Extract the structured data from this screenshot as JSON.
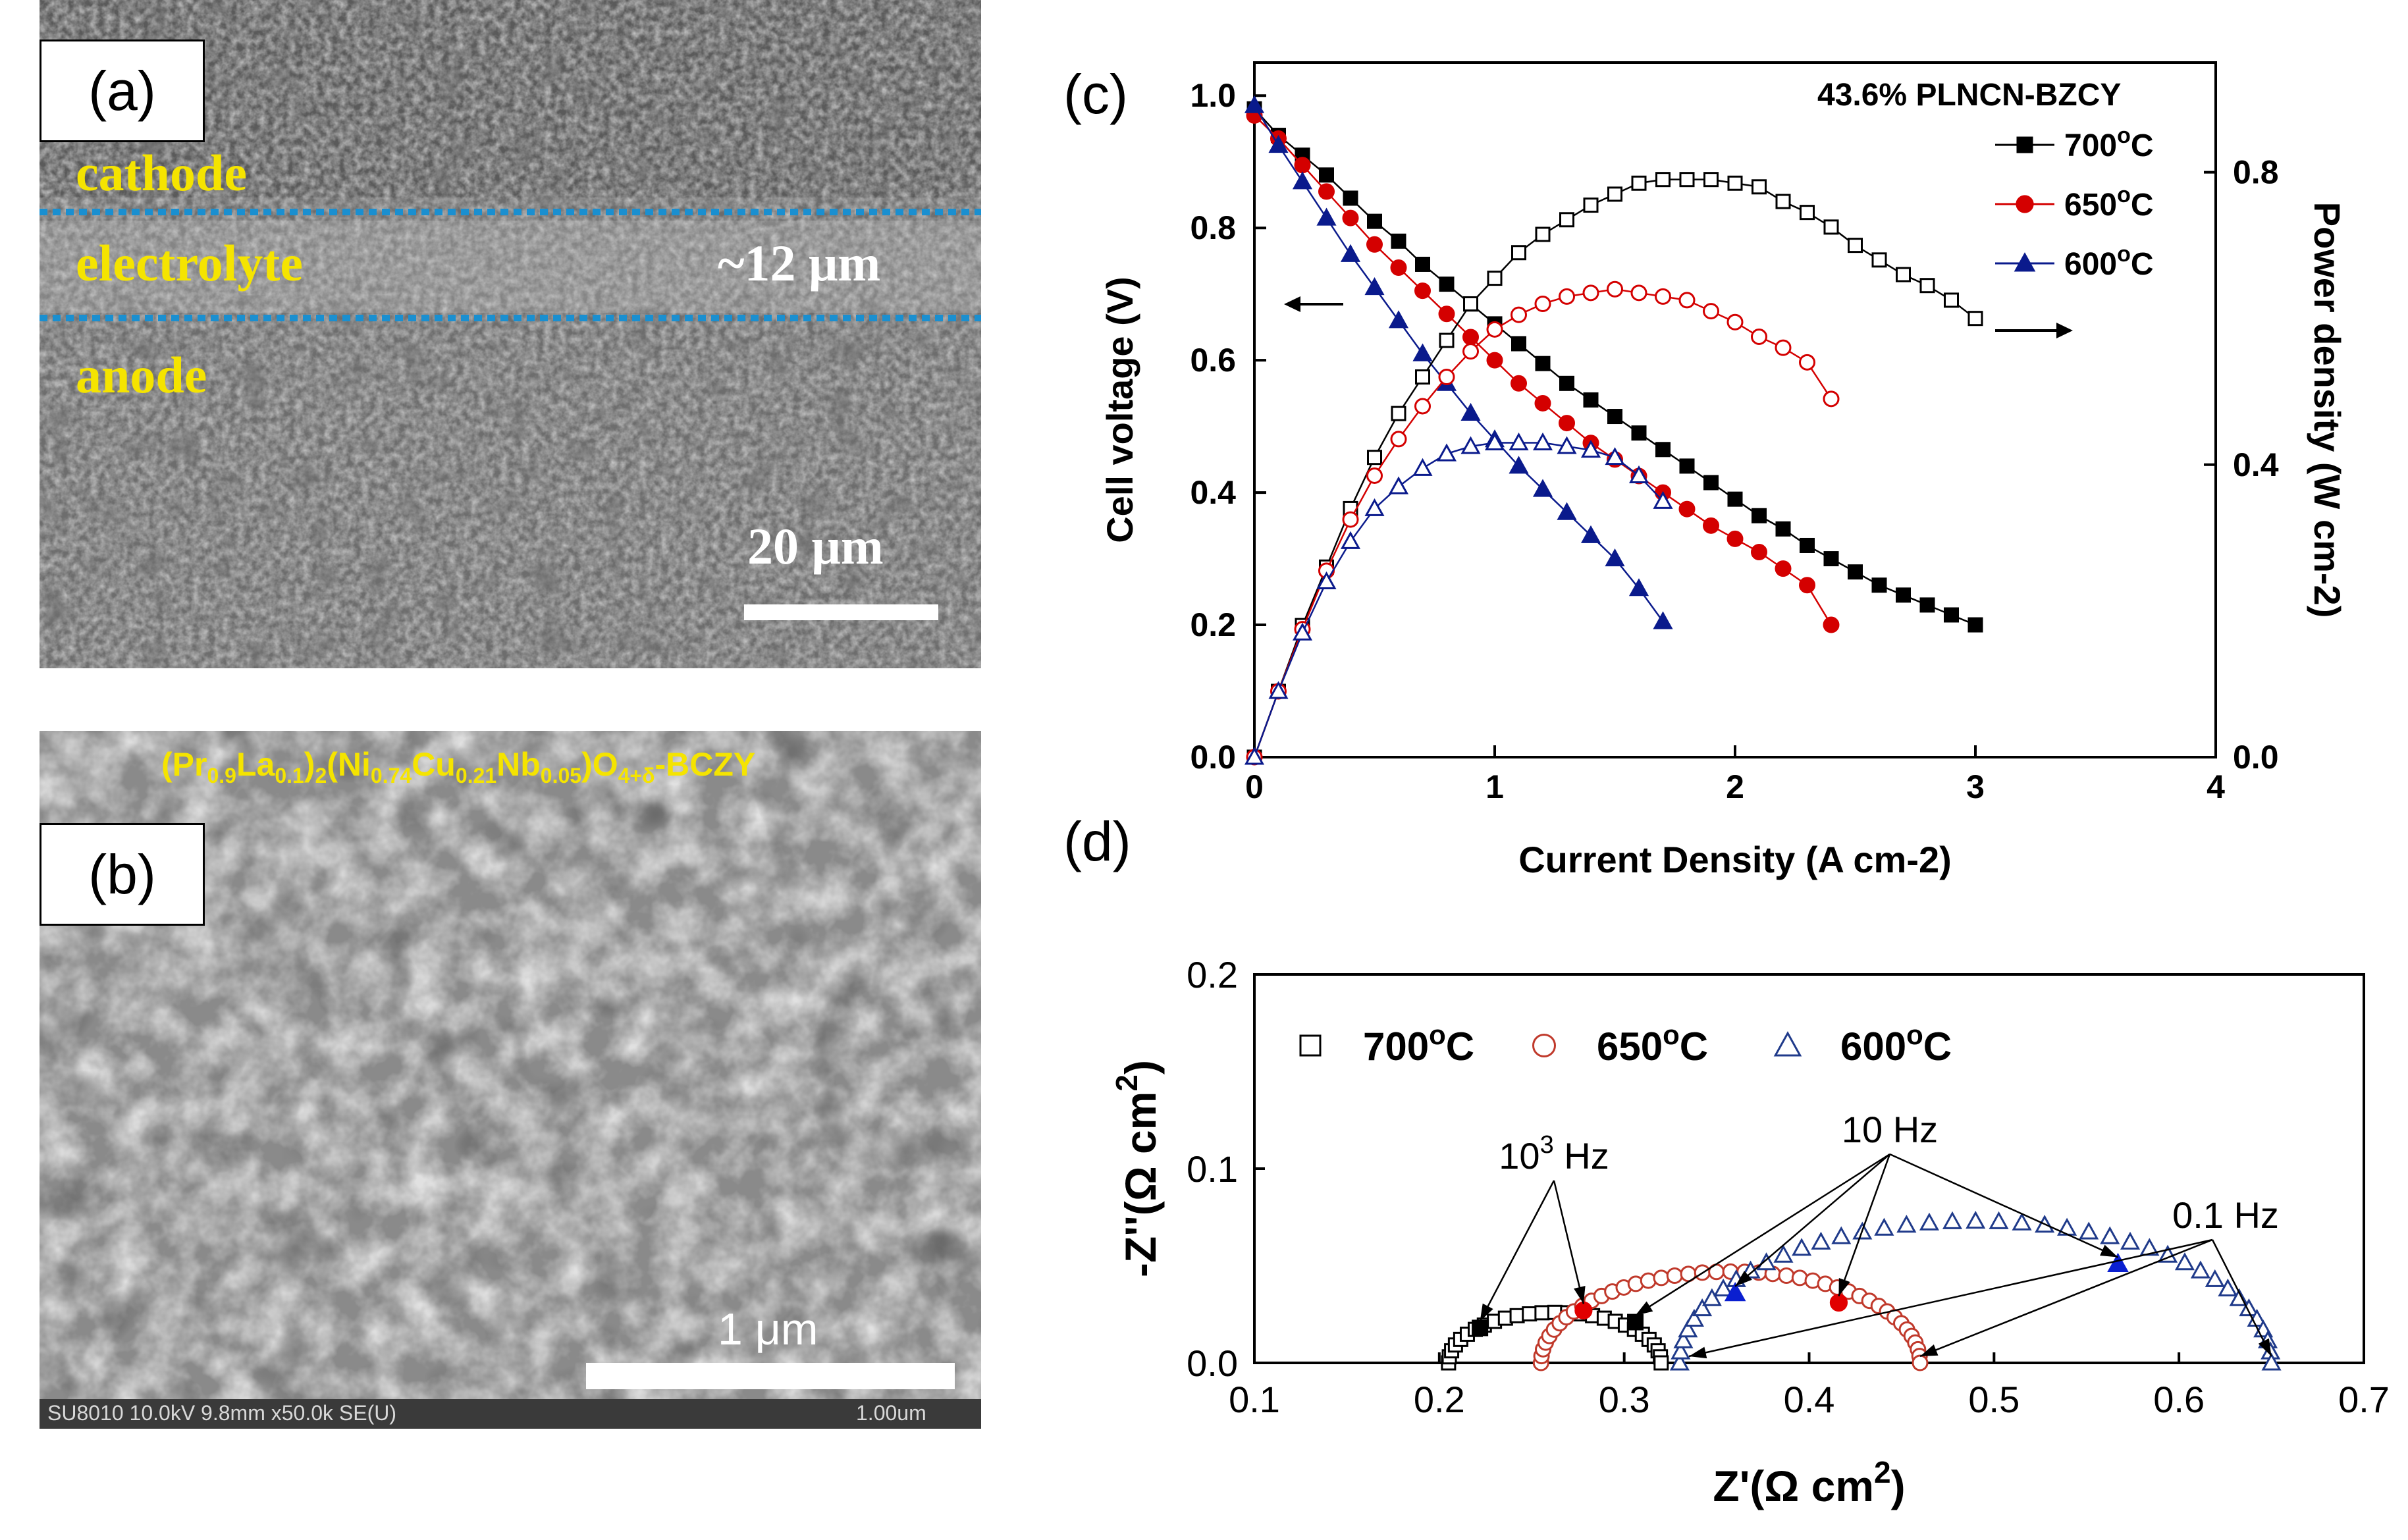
{
  "panel_a": {
    "label": "(a)",
    "layers": [
      "cathode",
      "electrolyte",
      "anode"
    ],
    "thickness": "~12 μm",
    "scale": "20 μm"
  },
  "panel_b": {
    "label": "(b)",
    "composition_parts": [
      "(Pr",
      "0.9",
      "La",
      "0.1",
      ")",
      "2",
      "(Ni",
      "0.74",
      "Cu",
      "0.21",
      "Nb",
      "0.05",
      ")O",
      "4+δ",
      "-BCZY"
    ],
    "scale": "1 μm",
    "info": "SU8010 10.0kV 9.8mm x50.0k SE(U)",
    "info_scale": "1.00um"
  },
  "chart_data": [
    {
      "panel": "(c)",
      "type": "line",
      "title": "43.6% PLNCN-BZCY",
      "xlabel": "Current Density (A cm-2)",
      "ylabel_left": "Cell voltage (V)",
      "ylabel_right": "Power density (W cm-2)",
      "xlim": [
        0,
        4
      ],
      "ylim_left": [
        0,
        1.05
      ],
      "ylim_right": [
        0,
        0.95
      ],
      "x_ticks": [
        "0",
        "1",
        "2",
        "3",
        "4"
      ],
      "y_ticks_left": [
        "0.0",
        "0.2",
        "0.4",
        "0.6",
        "0.8",
        "1.0"
      ],
      "y_ticks_right": [
        "0.0",
        "0.4",
        "0.8"
      ],
      "legend_position": "top-right",
      "colors": {
        "700": "#000000",
        "650": "#d40000",
        "600": "#0a1a8c"
      },
      "series": [
        {
          "name": "700°C",
          "axis": "left",
          "marker": "square-filled",
          "x": [
            0,
            0.1,
            0.2,
            0.3,
            0.4,
            0.5,
            0.6,
            0.7,
            0.8,
            0.9,
            1.0,
            1.1,
            1.2,
            1.3,
            1.4,
            1.5,
            1.6,
            1.7,
            1.8,
            1.9,
            2.0,
            2.1,
            2.2,
            2.3,
            2.4,
            2.5,
            2.6,
            2.7,
            2.8,
            2.9,
            3.0
          ],
          "y": [
            0.98,
            0.94,
            0.91,
            0.88,
            0.845,
            0.81,
            0.78,
            0.745,
            0.715,
            0.685,
            0.655,
            0.625,
            0.595,
            0.565,
            0.54,
            0.515,
            0.49,
            0.465,
            0.44,
            0.415,
            0.39,
            0.365,
            0.345,
            0.32,
            0.3,
            0.28,
            0.26,
            0.245,
            0.23,
            0.215,
            0.2
          ]
        },
        {
          "name": "650°C",
          "axis": "left",
          "marker": "circle-filled",
          "x": [
            0,
            0.1,
            0.2,
            0.3,
            0.4,
            0.5,
            0.6,
            0.7,
            0.8,
            0.9,
            1.0,
            1.1,
            1.2,
            1.3,
            1.4,
            1.5,
            1.6,
            1.7,
            1.8,
            1.9,
            2.0,
            2.1,
            2.2,
            2.3,
            2.4
          ],
          "y": [
            0.97,
            0.935,
            0.895,
            0.855,
            0.815,
            0.775,
            0.74,
            0.705,
            0.67,
            0.635,
            0.6,
            0.565,
            0.535,
            0.505,
            0.475,
            0.45,
            0.425,
            0.4,
            0.375,
            0.35,
            0.33,
            0.31,
            0.285,
            0.26,
            0.2
          ]
        },
        {
          "name": "600°C",
          "axis": "left",
          "marker": "triangle-filled",
          "x": [
            0,
            0.1,
            0.2,
            0.3,
            0.4,
            0.5,
            0.6,
            0.7,
            0.8,
            0.9,
            1.0,
            1.1,
            1.2,
            1.3,
            1.4,
            1.5,
            1.6,
            1.7
          ],
          "y": [
            0.985,
            0.925,
            0.87,
            0.815,
            0.76,
            0.71,
            0.66,
            0.61,
            0.565,
            0.52,
            0.48,
            0.44,
            0.405,
            0.37,
            0.335,
            0.3,
            0.255,
            0.205
          ]
        },
        {
          "name": "700°C",
          "axis": "right",
          "marker": "square-open",
          "x": [
            0,
            0.1,
            0.2,
            0.3,
            0.4,
            0.5,
            0.6,
            0.7,
            0.8,
            0.9,
            1.0,
            1.1,
            1.2,
            1.3,
            1.4,
            1.5,
            1.6,
            1.7,
            1.8,
            1.9,
            2.0,
            2.1,
            2.2,
            2.3,
            2.4,
            2.5,
            2.6,
            2.7,
            2.8,
            2.9,
            3.0
          ],
          "y": [
            0.0,
            0.09,
            0.18,
            0.26,
            0.34,
            0.41,
            0.47,
            0.52,
            0.57,
            0.62,
            0.655,
            0.69,
            0.715,
            0.735,
            0.755,
            0.77,
            0.785,
            0.79,
            0.79,
            0.79,
            0.785,
            0.78,
            0.76,
            0.745,
            0.725,
            0.7,
            0.68,
            0.66,
            0.645,
            0.625,
            0.6
          ]
        },
        {
          "name": "650°C",
          "axis": "right",
          "marker": "circle-open",
          "x": [
            0,
            0.1,
            0.2,
            0.3,
            0.4,
            0.5,
            0.6,
            0.7,
            0.8,
            0.9,
            1.0,
            1.1,
            1.2,
            1.3,
            1.4,
            1.5,
            1.6,
            1.7,
            1.8,
            1.9,
            2.0,
            2.1,
            2.2,
            2.3,
            2.4
          ],
          "y": [
            0.0,
            0.09,
            0.175,
            0.255,
            0.325,
            0.385,
            0.435,
            0.48,
            0.52,
            0.555,
            0.585,
            0.605,
            0.62,
            0.63,
            0.635,
            0.64,
            0.635,
            0.63,
            0.625,
            0.61,
            0.595,
            0.575,
            0.56,
            0.54,
            0.49
          ]
        },
        {
          "name": "600°C",
          "axis": "right",
          "marker": "triangle-open",
          "x": [
            0,
            0.1,
            0.2,
            0.3,
            0.4,
            0.5,
            0.6,
            0.7,
            0.8,
            0.9,
            1.0,
            1.1,
            1.2,
            1.3,
            1.4,
            1.5,
            1.6,
            1.7
          ],
          "y": [
            0.0,
            0.09,
            0.17,
            0.24,
            0.295,
            0.34,
            0.37,
            0.395,
            0.415,
            0.425,
            0.43,
            0.43,
            0.43,
            0.425,
            0.42,
            0.41,
            0.385,
            0.35
          ]
        }
      ]
    },
    {
      "panel": "(d)",
      "type": "scatter",
      "xlabel": "Z'(Ω cm2)",
      "ylabel": "-Z''(Ω cm2)",
      "xlim": [
        0.1,
        0.7
      ],
      "ylim": [
        0,
        0.2
      ],
      "x_ticks": [
        "0.1",
        "0.2",
        "0.3",
        "0.4",
        "0.5",
        "0.6",
        "0.7"
      ],
      "y_ticks": [
        "0.0",
        "0.1",
        "0.2"
      ],
      "legend_position": "top-left",
      "colors": {
        "700": "#000000",
        "650": "#c0392b",
        "600": "#1f3a8a"
      },
      "series": [
        {
          "name": "700°C",
          "marker": "square",
          "center": 0.2625,
          "radius": 0.0575,
          "x_range": [
            0.205,
            0.32
          ],
          "peak": 0.026
        },
        {
          "name": "650°C",
          "marker": "circle",
          "center": 0.3575,
          "radius": 0.1025,
          "x_range": [
            0.255,
            0.46
          ],
          "peak": 0.047
        },
        {
          "name": "600°C",
          "marker": "triangle",
          "center": 0.49,
          "radius": 0.16,
          "x_range": [
            0.33,
            0.65
          ],
          "peak": 0.073
        }
      ],
      "highlighted_points": [
        {
          "series": "700°C",
          "x": 0.222,
          "y": 0.018
        },
        {
          "series": "700°C",
          "x": 0.306,
          "y": 0.021
        },
        {
          "series": "650°C",
          "x": 0.278,
          "y": 0.027
        },
        {
          "series": "650°C",
          "x": 0.416,
          "y": 0.031
        },
        {
          "series": "600°C",
          "x": 0.36,
          "y": 0.036
        },
        {
          "series": "600°C",
          "x": 0.567,
          "y": 0.051
        }
      ],
      "annotations": [
        {
          "text_parts": [
            "10",
            "3",
            " Hz"
          ],
          "points_to": [
            [
              0.222,
              0.018
            ],
            [
              0.278,
              0.027
            ]
          ]
        },
        {
          "text_parts": [
            "10 Hz"
          ],
          "points_to": [
            [
              0.306,
              0.021
            ],
            [
              0.36,
              0.036
            ],
            [
              0.416,
              0.031
            ],
            [
              0.567,
              0.051
            ]
          ]
        },
        {
          "text_parts": [
            "0.1 Hz"
          ],
          "points_to": [
            [
              0.335,
              0.0
            ],
            [
              0.46,
              0.0
            ],
            [
              0.65,
              0.0
            ]
          ]
        }
      ]
    }
  ]
}
